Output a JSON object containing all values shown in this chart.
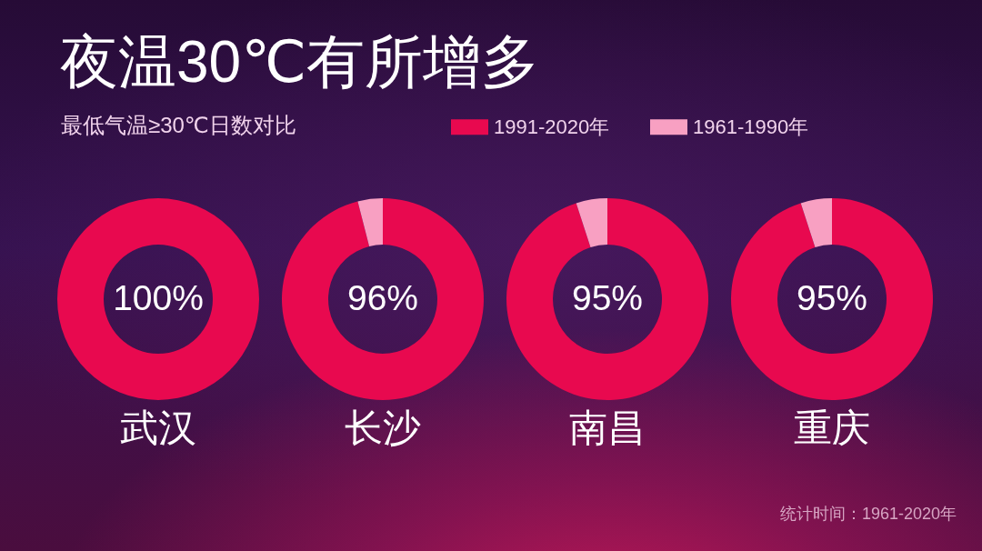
{
  "chart_data": [
    {
      "type": "other",
      "title": "夜温30℃有所增多",
      "subtitle": "最低气温≥30℃日数对比",
      "annotations": [
        "统计时间：1961-2020年"
      ]
    },
    {
      "type": "donut",
      "title": "武汉",
      "categories": [
        "1991-2020年",
        "1961-1990年"
      ],
      "values": [
        100,
        0
      ],
      "colors": [
        "#e8094f",
        "#f8a0c2"
      ],
      "value_labels": [
        "100%",
        null
      ],
      "legend": "top right"
    },
    {
      "type": "donut",
      "title": "长沙",
      "categories": [
        null,
        null
      ],
      "values": [
        96,
        4
      ],
      "colors": [
        "#e8094f",
        "#f8a0c2"
      ],
      "value_labels": [
        "96%",
        null
      ]
    },
    {
      "type": "donut",
      "title": "南昌",
      "categories": [
        null,
        null
      ],
      "values": [
        95,
        5
      ],
      "colors": [
        "#e8094f",
        "#f8a0c2"
      ],
      "value_labels": [
        "95%",
        null
      ]
    },
    {
      "type": "donut",
      "title": "重庆",
      "categories": [
        null,
        null
      ],
      "values": [
        95,
        5
      ],
      "colors": [
        "#e8094f",
        "#f8a0c2"
      ],
      "value_labels": [
        "95%",
        null
      ]
    }
  ]
}
